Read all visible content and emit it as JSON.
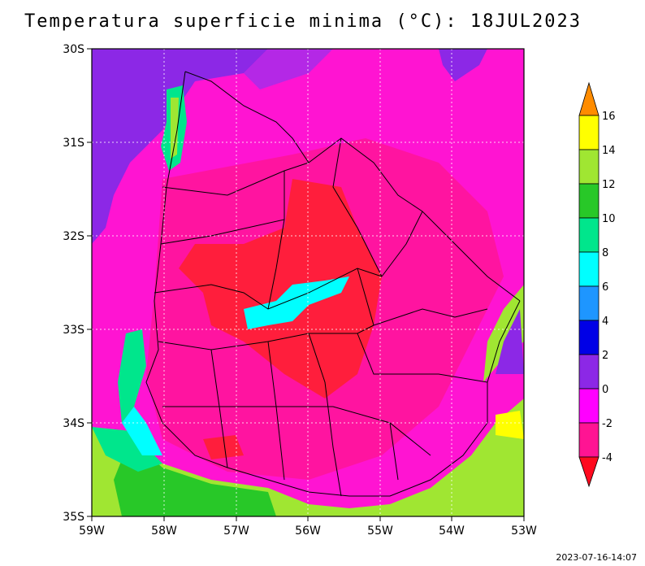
{
  "title": "Temperatura superficie minima (°C): 18JUL2023",
  "timestamp": "2023-07-16-14:07",
  "axes": {
    "lon_labels": [
      "59W",
      "58W",
      "57W",
      "56W",
      "55W",
      "54W",
      "53W"
    ],
    "lat_labels": [
      "30S",
      "31S",
      "32S",
      "33S",
      "34S",
      "35S"
    ]
  },
  "colorbar": {
    "labels": [
      "16",
      "14",
      "12",
      "10",
      "8",
      "6",
      "4",
      "2",
      "0",
      "-2",
      "-4"
    ],
    "colors": [
      "#ff8c00",
      "#ffff00",
      "#a0e632",
      "#28c828",
      "#00e68c",
      "#00ffff",
      "#1e96ff",
      "#1e3cff",
      "#0000c8",
      "#8c28e6",
      "#ff00ff",
      "#ff1493",
      "#ff0a3c",
      "#e60000"
    ]
  },
  "colors": {
    "warm_red": "#ff1e3c",
    "magenta": "#ff14b4",
    "pink": "#ff00ff",
    "purple": "#8c28e6",
    "green": "#a0e632",
    "cyan": "#00ffff"
  }
}
